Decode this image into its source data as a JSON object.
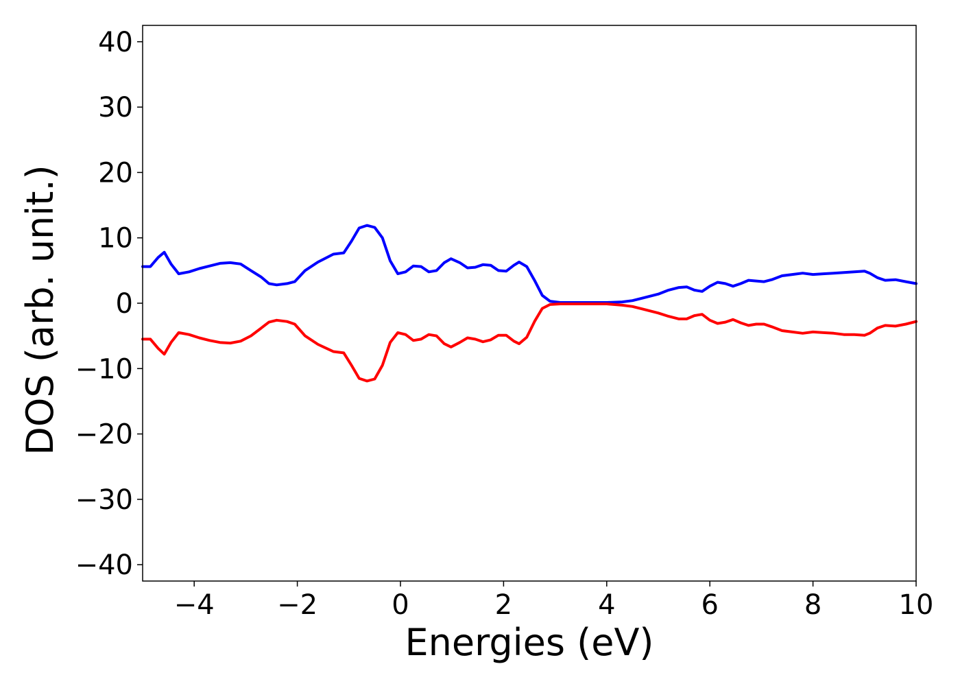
{
  "chart_data": {
    "type": "line",
    "title": "",
    "xlabel": "Energies (eV)",
    "ylabel": "DOS (arb. unit.)",
    "xlim": [
      -5,
      10
    ],
    "ylim": [
      -42.5,
      42.5
    ],
    "x_ticks": [
      -4,
      -2,
      0,
      2,
      4,
      6,
      8,
      10
    ],
    "x_tick_labels": [
      "−4",
      "−2",
      "0",
      "2",
      "4",
      "6",
      "8",
      "10"
    ],
    "y_ticks": [
      40,
      30,
      20,
      10,
      0,
      -10,
      -20,
      -30,
      -40
    ],
    "y_tick_labels": [
      "40",
      "30",
      "20",
      "10",
      "0",
      "−10",
      "−20",
      "−30",
      "−40"
    ],
    "grid": false,
    "legend": "none",
    "series": [
      {
        "color": "#0000ff",
        "points": [
          [
            -5.0,
            5.6
          ],
          [
            -4.85,
            5.6
          ],
          [
            -4.7,
            7.0
          ],
          [
            -4.58,
            7.8
          ],
          [
            -4.45,
            6.0
          ],
          [
            -4.3,
            4.5
          ],
          [
            -4.1,
            4.8
          ],
          [
            -3.9,
            5.3
          ],
          [
            -3.7,
            5.7
          ],
          [
            -3.5,
            6.1
          ],
          [
            -3.3,
            6.2
          ],
          [
            -3.1,
            6.0
          ],
          [
            -2.9,
            5.0
          ],
          [
            -2.7,
            4.0
          ],
          [
            -2.55,
            3.0
          ],
          [
            -2.4,
            2.8
          ],
          [
            -2.2,
            3.0
          ],
          [
            -2.05,
            3.3
          ],
          [
            -1.85,
            5.0
          ],
          [
            -1.6,
            6.3
          ],
          [
            -1.3,
            7.5
          ],
          [
            -1.1,
            7.7
          ],
          [
            -0.95,
            9.5
          ],
          [
            -0.8,
            11.5
          ],
          [
            -0.65,
            11.9
          ],
          [
            -0.5,
            11.6
          ],
          [
            -0.35,
            10.0
          ],
          [
            -0.2,
            6.5
          ],
          [
            -0.05,
            4.5
          ],
          [
            0.1,
            4.8
          ],
          [
            0.25,
            5.7
          ],
          [
            0.4,
            5.6
          ],
          [
            0.55,
            4.8
          ],
          [
            0.7,
            5.0
          ],
          [
            0.85,
            6.2
          ],
          [
            0.98,
            6.8
          ],
          [
            1.15,
            6.2
          ],
          [
            1.3,
            5.4
          ],
          [
            1.45,
            5.5
          ],
          [
            1.6,
            5.9
          ],
          [
            1.75,
            5.8
          ],
          [
            1.9,
            5.0
          ],
          [
            2.05,
            4.9
          ],
          [
            2.2,
            5.8
          ],
          [
            2.3,
            6.3
          ],
          [
            2.45,
            5.6
          ],
          [
            2.6,
            3.5
          ],
          [
            2.75,
            1.2
          ],
          [
            2.9,
            0.3
          ],
          [
            3.1,
            0.1
          ],
          [
            3.5,
            0.1
          ],
          [
            4.0,
            0.1
          ],
          [
            4.3,
            0.2
          ],
          [
            4.5,
            0.4
          ],
          [
            4.7,
            0.8
          ],
          [
            5.0,
            1.4
          ],
          [
            5.2,
            2.0
          ],
          [
            5.4,
            2.4
          ],
          [
            5.55,
            2.5
          ],
          [
            5.7,
            2.0
          ],
          [
            5.85,
            1.8
          ],
          [
            6.0,
            2.6
          ],
          [
            6.15,
            3.2
          ],
          [
            6.3,
            3.0
          ],
          [
            6.45,
            2.6
          ],
          [
            6.6,
            3.0
          ],
          [
            6.75,
            3.5
          ],
          [
            6.9,
            3.4
          ],
          [
            7.05,
            3.3
          ],
          [
            7.2,
            3.6
          ],
          [
            7.4,
            4.2
          ],
          [
            7.6,
            4.4
          ],
          [
            7.8,
            4.6
          ],
          [
            8.0,
            4.4
          ],
          [
            8.2,
            4.5
          ],
          [
            8.4,
            4.6
          ],
          [
            8.6,
            4.7
          ],
          [
            8.8,
            4.8
          ],
          [
            9.0,
            4.9
          ],
          [
            9.1,
            4.6
          ],
          [
            9.25,
            3.9
          ],
          [
            9.4,
            3.5
          ],
          [
            9.6,
            3.6
          ],
          [
            9.8,
            3.3
          ],
          [
            10.0,
            3.0
          ]
        ]
      },
      {
        "color": "#ff0000",
        "points": [
          [
            -5.0,
            -5.5
          ],
          [
            -4.85,
            -5.5
          ],
          [
            -4.7,
            -6.9
          ],
          [
            -4.58,
            -7.8
          ],
          [
            -4.45,
            -6.0
          ],
          [
            -4.3,
            -4.5
          ],
          [
            -4.1,
            -4.8
          ],
          [
            -3.9,
            -5.3
          ],
          [
            -3.7,
            -5.7
          ],
          [
            -3.5,
            -6.0
          ],
          [
            -3.3,
            -6.1
          ],
          [
            -3.1,
            -5.8
          ],
          [
            -2.9,
            -5.0
          ],
          [
            -2.7,
            -3.8
          ],
          [
            -2.55,
            -2.9
          ],
          [
            -2.4,
            -2.6
          ],
          [
            -2.2,
            -2.8
          ],
          [
            -2.05,
            -3.2
          ],
          [
            -1.85,
            -5.0
          ],
          [
            -1.6,
            -6.3
          ],
          [
            -1.3,
            -7.4
          ],
          [
            -1.1,
            -7.6
          ],
          [
            -0.95,
            -9.5
          ],
          [
            -0.8,
            -11.5
          ],
          [
            -0.65,
            -11.9
          ],
          [
            -0.5,
            -11.6
          ],
          [
            -0.35,
            -9.5
          ],
          [
            -0.2,
            -6.0
          ],
          [
            -0.05,
            -4.5
          ],
          [
            0.1,
            -4.8
          ],
          [
            0.25,
            -5.7
          ],
          [
            0.4,
            -5.5
          ],
          [
            0.55,
            -4.8
          ],
          [
            0.7,
            -5.0
          ],
          [
            0.85,
            -6.2
          ],
          [
            0.98,
            -6.7
          ],
          [
            1.15,
            -6.0
          ],
          [
            1.3,
            -5.3
          ],
          [
            1.45,
            -5.5
          ],
          [
            1.6,
            -5.9
          ],
          [
            1.75,
            -5.6
          ],
          [
            1.9,
            -4.9
          ],
          [
            2.05,
            -4.9
          ],
          [
            2.2,
            -5.8
          ],
          [
            2.3,
            -6.2
          ],
          [
            2.45,
            -5.2
          ],
          [
            2.6,
            -2.8
          ],
          [
            2.75,
            -0.8
          ],
          [
            2.9,
            -0.2
          ],
          [
            3.1,
            -0.1
          ],
          [
            3.5,
            -0.1
          ],
          [
            4.0,
            -0.1
          ],
          [
            4.3,
            -0.3
          ],
          [
            4.5,
            -0.5
          ],
          [
            4.7,
            -0.9
          ],
          [
            5.0,
            -1.5
          ],
          [
            5.2,
            -2.0
          ],
          [
            5.4,
            -2.4
          ],
          [
            5.55,
            -2.4
          ],
          [
            5.7,
            -1.9
          ],
          [
            5.85,
            -1.7
          ],
          [
            6.0,
            -2.6
          ],
          [
            6.15,
            -3.1
          ],
          [
            6.3,
            -2.9
          ],
          [
            6.45,
            -2.5
          ],
          [
            6.6,
            -3.0
          ],
          [
            6.75,
            -3.4
          ],
          [
            6.9,
            -3.2
          ],
          [
            7.05,
            -3.2
          ],
          [
            7.2,
            -3.6
          ],
          [
            7.4,
            -4.2
          ],
          [
            7.6,
            -4.4
          ],
          [
            7.8,
            -4.6
          ],
          [
            8.0,
            -4.4
          ],
          [
            8.2,
            -4.5
          ],
          [
            8.4,
            -4.6
          ],
          [
            8.6,
            -4.8
          ],
          [
            8.8,
            -4.8
          ],
          [
            9.0,
            -4.9
          ],
          [
            9.1,
            -4.6
          ],
          [
            9.25,
            -3.8
          ],
          [
            9.4,
            -3.4
          ],
          [
            9.6,
            -3.5
          ],
          [
            9.8,
            -3.2
          ],
          [
            10.0,
            -2.8
          ]
        ]
      }
    ]
  }
}
